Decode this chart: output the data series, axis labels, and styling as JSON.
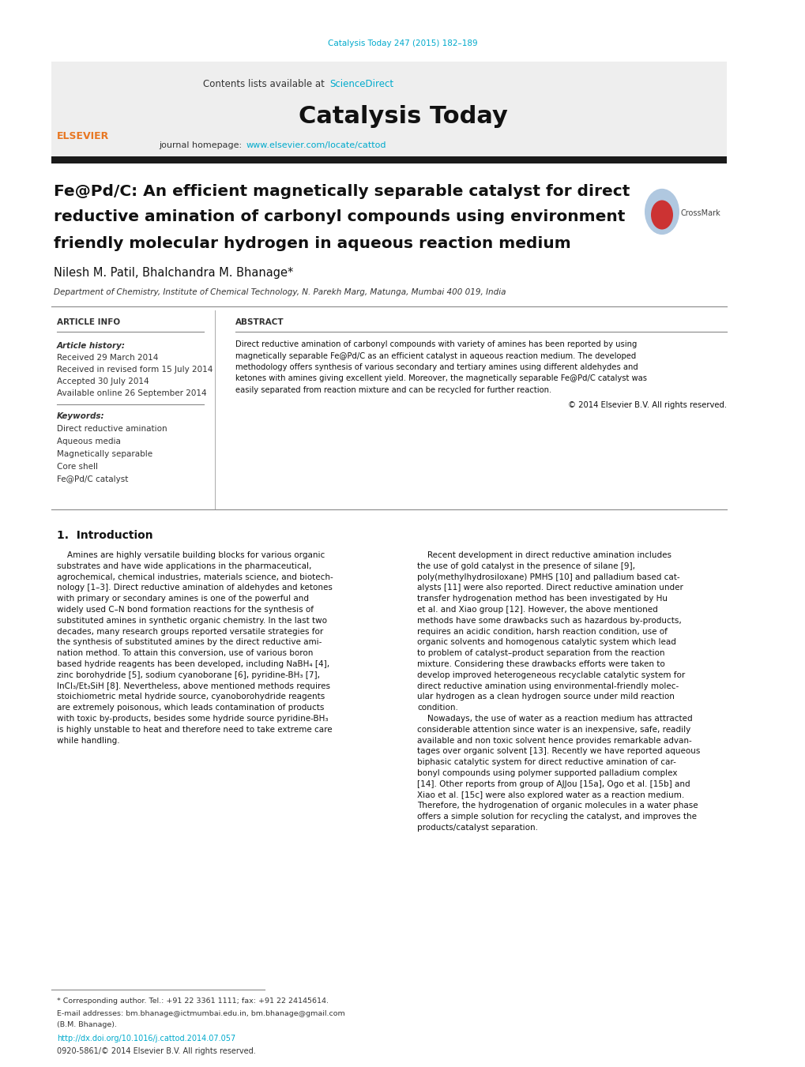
{
  "page_width": 10.2,
  "page_height": 13.51,
  "bg_color": "#ffffff",
  "journal_ref": "Catalysis Today 247 (2015) 182–189",
  "journal_ref_color": "#00aacc",
  "contents_line": "Contents lists available at",
  "sciencedirect": "ScienceDirect",
  "sciencedirect_color": "#00aacc",
  "journal_name": "Catalysis Today",
  "journal_homepage_prefix": "journal homepage: ",
  "journal_homepage_url": "www.elsevier.com/locate/cattod",
  "journal_homepage_color": "#00aacc",
  "header_bg_color": "#eeeeee",
  "dark_bar_color": "#1a1a1a",
  "title_line1": "Fe@Pd/C: An efficient magnetically separable catalyst for direct",
  "title_line2": "reductive amination of carbonyl compounds using environment",
  "title_line3": "friendly molecular hydrogen in aqueous reaction medium",
  "authors": "Nilesh M. Patil, Bhalchandra M. Bhanage*",
  "affiliation": "Department of Chemistry, Institute of Chemical Technology, N. Parekh Marg, Matunga, Mumbai 400 019, India",
  "section_article_info": "ARTICLE INFO",
  "section_abstract": "ABSTRACT",
  "article_history_label": "Article history:",
  "received": "Received 29 March 2014",
  "revised": "Received in revised form 15 July 2014",
  "accepted": "Accepted 30 July 2014",
  "available": "Available online 26 September 2014",
  "keywords_label": "Keywords:",
  "keyword1": "Direct reductive amination",
  "keyword2": "Aqueous media",
  "keyword3": "Magnetically separable",
  "keyword4": "Core shell",
  "keyword5": "Fe@Pd/C catalyst",
  "copyright": "© 2014 Elsevier B.V. All rights reserved.",
  "intro_heading": "1.  Introduction",
  "footnote1": "* Corresponding author. Tel.: +91 22 3361 1111; fax: +91 22 24145614.",
  "footnote2": "E-mail addresses: bm.bhanage@ictmumbai.edu.in, bm.bhanage@gmail.com",
  "footnote3": "(B.M. Bhanage).",
  "doi_line": "http://dx.doi.org/10.1016/j.cattod.2014.07.057",
  "doi_color": "#00aacc",
  "issn_line": "0920-5861/© 2014 Elsevier B.V. All rights reserved.",
  "abstract_lines": [
    "Direct reductive amination of carbonyl compounds with variety of amines has been reported by using",
    "magnetically separable Fe@Pd/C as an efficient catalyst in aqueous reaction medium. The developed",
    "methodology offers synthesis of various secondary and tertiary amines using different aldehydes and",
    "ketones with amines giving excellent yield. Moreover, the magnetically separable Fe@Pd/C catalyst was",
    "easily separated from reaction mixture and can be recycled for further reaction."
  ],
  "intro_col1_lines": [
    "    Amines are highly versatile building blocks for various organic",
    "substrates and have wide applications in the pharmaceutical,",
    "agrochemical, chemical industries, materials science, and biotech-",
    "nology [1–3]. Direct reductive amination of aldehydes and ketones",
    "with primary or secondary amines is one of the powerful and",
    "widely used C–N bond formation reactions for the synthesis of",
    "substituted amines in synthetic organic chemistry. In the last two",
    "decades, many research groups reported versatile strategies for",
    "the synthesis of substituted amines by the direct reductive ami-",
    "nation method. To attain this conversion, use of various boron",
    "based hydride reagents has been developed, including NaBH₄ [4],",
    "zinc borohydride [5], sodium cyanoborane [6], pyridine-BH₃ [7],",
    "InCl₃/Et₃SiH [8]. Nevertheless, above mentioned methods requires",
    "stoichiometric metal hydride source, cyanoborohydride reagents",
    "are extremely poisonous, which leads contamination of products",
    "with toxic by-products, besides some hydride source pyridine-BH₃",
    "is highly unstable to heat and therefore need to take extreme care",
    "while handling."
  ],
  "intro_col2_lines": [
    "    Recent development in direct reductive amination includes",
    "the use of gold catalyst in the presence of silane [9],",
    "poly(methylhydrosiloxane) PMHS [10] and palladium based cat-",
    "alysts [11] were also reported. Direct reductive amination under",
    "transfer hydrogenation method has been investigated by Hu",
    "et al. and Xiao group [12]. However, the above mentioned",
    "methods have some drawbacks such as hazardous by-products,",
    "requires an acidic condition, harsh reaction condition, use of",
    "organic solvents and homogenous catalytic system which lead",
    "to problem of catalyst–product separation from the reaction",
    "mixture. Considering these drawbacks efforts were taken to",
    "develop improved heterogeneous recyclable catalytic system for",
    "direct reductive amination using environmental-friendly molec-",
    "ular hydrogen as a clean hydrogen source under mild reaction",
    "condition.",
    "    Nowadays, the use of water as a reaction medium has attracted",
    "considerable attention since water is an inexpensive, safe, readily",
    "available and non toxic solvent hence provides remarkable advan-",
    "tages over organic solvent [13]. Recently we have reported aqueous",
    "biphasic catalytic system for direct reductive amination of car-",
    "bonyl compounds using polymer supported palladium complex",
    "[14]. Other reports from group of AJJou [15a], Ogo et al. [15b] and",
    "Xiao et al. [15c] were also explored water as a reaction medium.",
    "Therefore, the hydrogenation of organic molecules in a water phase",
    "offers a simple solution for recycling the catalyst, and improves the",
    "products/catalyst separation."
  ]
}
